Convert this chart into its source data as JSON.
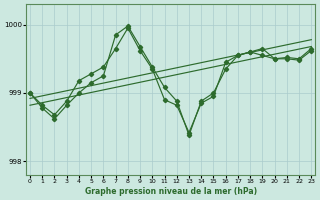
{
  "background_color": "#cce8e0",
  "grid_color": "#aacccc",
  "line_color": "#2d6b2d",
  "xlabel": "Graphe pression niveau de la mer (hPa)",
  "ylim": [
    997.8,
    1000.3
  ],
  "yticks": [
    998,
    999,
    1000
  ],
  "xlim": [
    -0.3,
    23.3
  ],
  "xticks": [
    0,
    1,
    2,
    3,
    4,
    5,
    6,
    7,
    8,
    9,
    10,
    11,
    12,
    13,
    14,
    15,
    16,
    17,
    18,
    19,
    20,
    21,
    22,
    23
  ],
  "trend1_x": [
    0,
    23
  ],
  "trend1_y": [
    998.92,
    999.78
  ],
  "trend2_x": [
    0,
    23
  ],
  "trend2_y": [
    998.82,
    999.68
  ],
  "series_main_x": [
    0,
    1,
    2,
    3,
    4,
    5,
    6,
    7,
    8,
    9,
    10,
    11,
    12,
    13,
    14,
    15,
    16,
    17,
    18,
    19,
    20,
    21,
    22,
    23
  ],
  "series_main_y": [
    999.0,
    998.82,
    998.68,
    998.88,
    999.18,
    999.28,
    999.38,
    999.65,
    999.95,
    999.62,
    999.35,
    998.9,
    998.82,
    998.42,
    998.85,
    998.95,
    999.45,
    999.55,
    999.6,
    999.65,
    999.5,
    999.52,
    999.5,
    999.65
  ],
  "series_vol_x": [
    0,
    1,
    2,
    3,
    4,
    5,
    6,
    7,
    8,
    9,
    10,
    11,
    12,
    13,
    14,
    15,
    16,
    17,
    18,
    19,
    20,
    21,
    22,
    23
  ],
  "series_vol_y": [
    999.0,
    998.78,
    998.62,
    998.82,
    999.0,
    999.15,
    999.25,
    999.85,
    999.98,
    999.68,
    999.38,
    999.08,
    998.88,
    998.38,
    998.88,
    999.0,
    999.35,
    999.55,
    999.6,
    999.55,
    999.5,
    999.5,
    999.48,
    999.62
  ]
}
